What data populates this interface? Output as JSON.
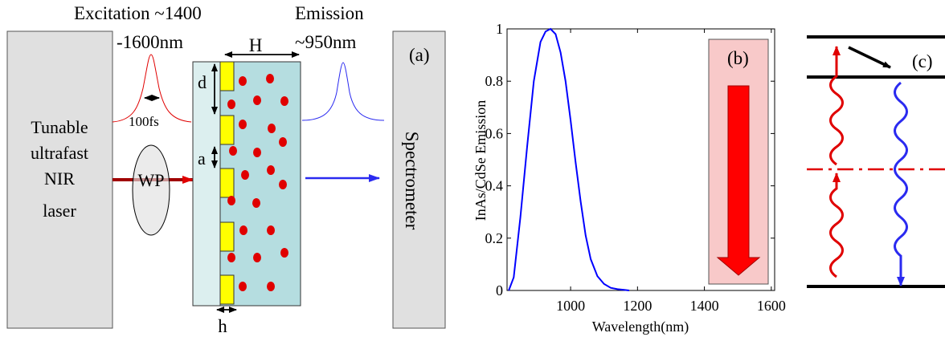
{
  "panel_a": {
    "excitation_label": "Excitation  ~1400",
    "excitation_range": "-1600nm",
    "emission_label": "Emission",
    "emission_range": "~950nm",
    "laser_lines": [
      "Tunable",
      "ultrafast",
      "NIR",
      "laser"
    ],
    "waveplate": "WP",
    "pulse_width": "100fs",
    "dim_H": "H",
    "dim_d": "d",
    "dim_a": "a",
    "dim_h": "h",
    "spectrometer": "Spectrometer",
    "panel_label": "(a)"
  },
  "panel_b": {
    "panel_label": "(b)"
  },
  "panel_c": {
    "panel_label": "(c)"
  },
  "colors": {
    "excitation": "#e00000",
    "emission": "#2a2af0",
    "box_fill": "#e0e0e0",
    "sample_bg": "#b5dde0",
    "sample_left": "#dcefef",
    "block_yellow": "#ffff00",
    "dot_red": "#e00000",
    "panel_b_bg": "#f8c9c9"
  },
  "chart_data": {
    "type": "line",
    "title": "",
    "xlabel": "Wavelength(nm)",
    "ylabel": "InAs/CdSe Emission",
    "xlim": [
      810,
      1610
    ],
    "ylim": [
      0,
      1
    ],
    "xticks": [
      1000,
      1200,
      1400,
      1600
    ],
    "yticks": [
      0,
      0.2,
      0.4,
      0.6,
      0.8,
      1
    ],
    "xtick_labels": [
      "1000",
      "1200",
      "1400",
      "1600"
    ],
    "ytick_labels": [
      "0",
      "0.2",
      "0.4",
      "0.6",
      "0.8",
      "1"
    ],
    "series": [
      {
        "name": "InAs/CdSe emission",
        "x": [
          815,
          830,
          850,
          870,
          890,
          910,
          925,
          940,
          955,
          970,
          985,
          1000,
          1015,
          1030,
          1045,
          1060,
          1080,
          1100,
          1120,
          1140,
          1160,
          1175
        ],
        "y": [
          0.0,
          0.05,
          0.28,
          0.55,
          0.8,
          0.95,
          0.99,
          1.0,
          0.98,
          0.91,
          0.8,
          0.65,
          0.49,
          0.34,
          0.21,
          0.12,
          0.055,
          0.025,
          0.01,
          0.005,
          0.002,
          0.0
        ]
      }
    ]
  }
}
